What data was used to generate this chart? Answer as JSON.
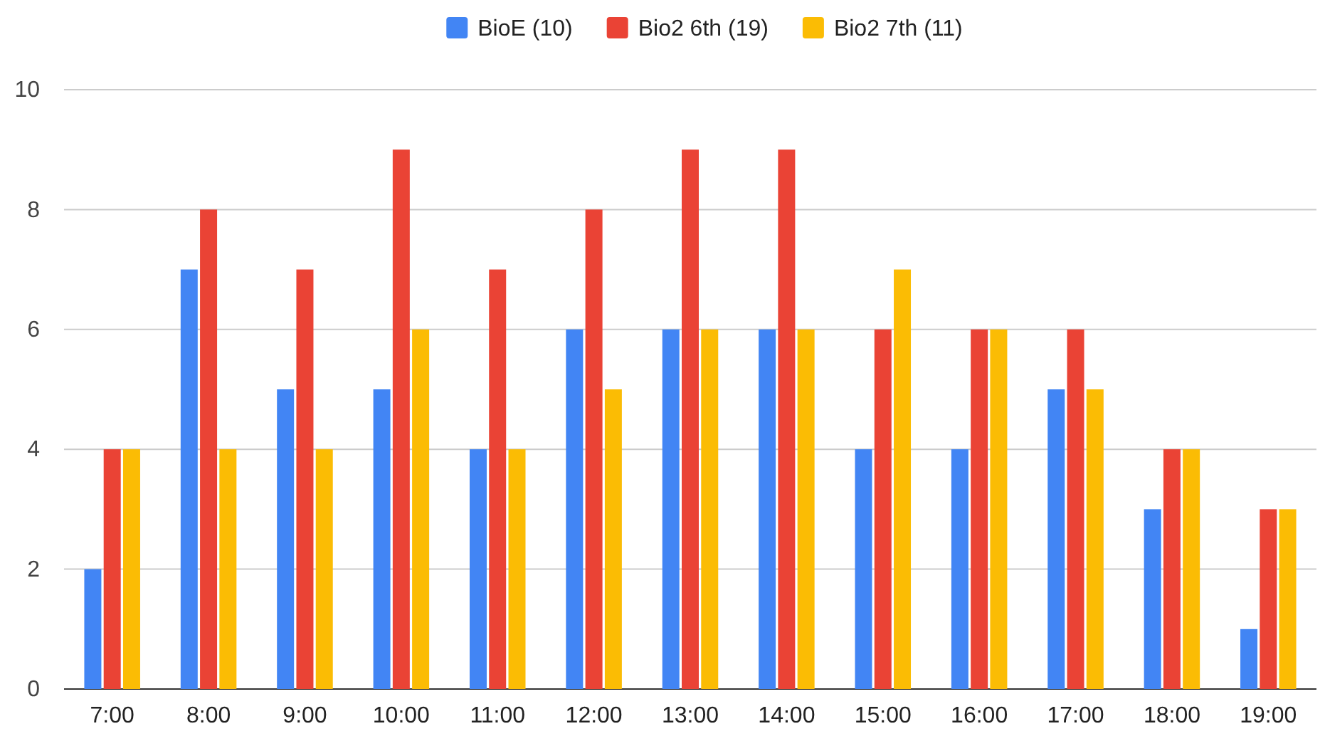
{
  "chart_data": {
    "type": "bar",
    "categories": [
      "7:00",
      "8:00",
      "9:00",
      "10:00",
      "11:00",
      "12:00",
      "13:00",
      "14:00",
      "15:00",
      "16:00",
      "17:00",
      "18:00",
      "19:00"
    ],
    "series": [
      {
        "name": "BioE (10)",
        "color": "#4285f4",
        "values": [
          2,
          7,
          5,
          5,
          4,
          6,
          6,
          6,
          4,
          4,
          5,
          3,
          1
        ]
      },
      {
        "name": "Bio2 6th (19)",
        "color": "#ea4335",
        "values": [
          4,
          8,
          7,
          9,
          7,
          8,
          9,
          9,
          6,
          6,
          6,
          4,
          3
        ]
      },
      {
        "name": "Bio2 7th (11)",
        "color": "#fbbc04",
        "values": [
          4,
          4,
          4,
          6,
          4,
          5,
          6,
          6,
          7,
          6,
          5,
          4,
          3
        ]
      }
    ],
    "ylim": [
      0,
      10
    ],
    "yticks": [
      0,
      2,
      4,
      6,
      8,
      10
    ],
    "grid": "y",
    "legend": "top"
  }
}
